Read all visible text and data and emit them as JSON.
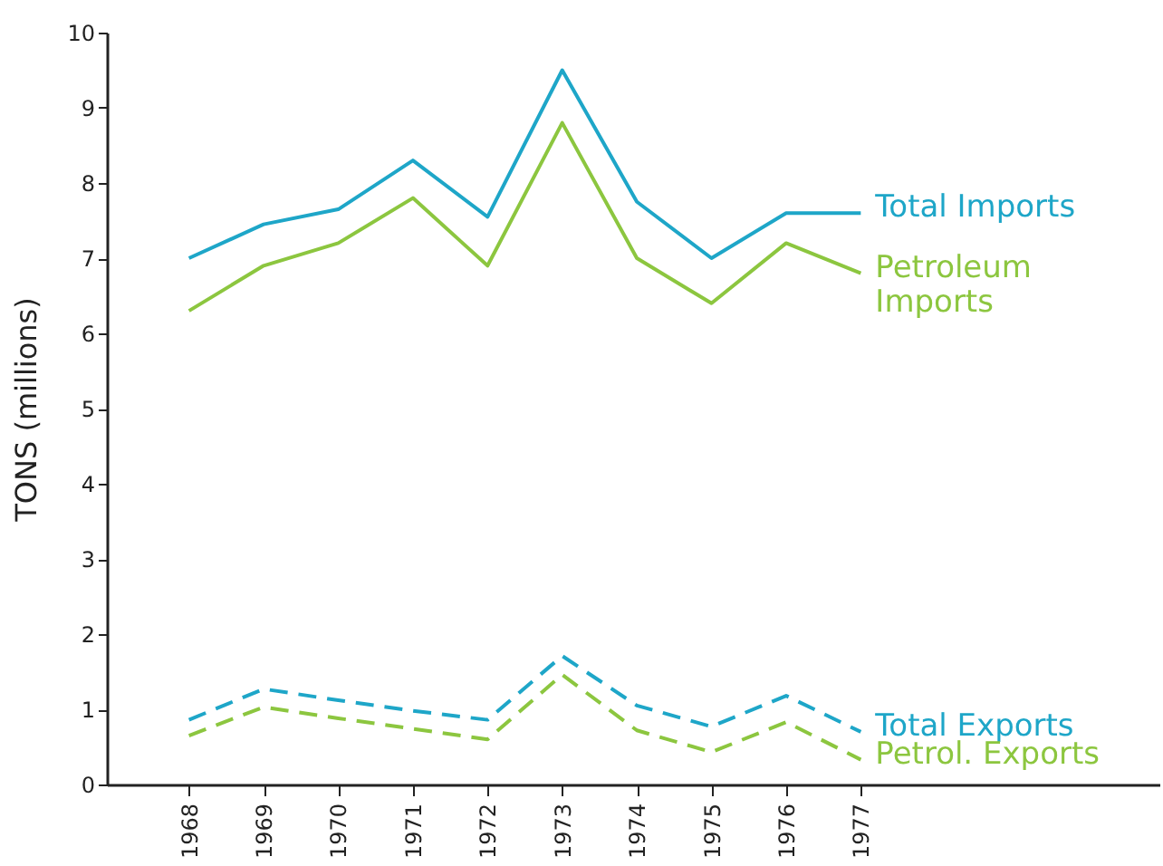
{
  "chart_data": {
    "type": "line",
    "ylabel": "TONS (millions)",
    "x": [
      1968,
      1969,
      1970,
      1971,
      1972,
      1973,
      1974,
      1975,
      1976,
      1977
    ],
    "xlim": [
      1966.9,
      1981
    ],
    "xticks": [
      1968,
      1969,
      1970,
      1971,
      1972,
      1973,
      1974,
      1975,
      1976,
      1977
    ],
    "ylim": [
      0,
      10
    ],
    "yticks": [
      0,
      1,
      2,
      3,
      4,
      5,
      6,
      7,
      8,
      9,
      10
    ],
    "grid": false,
    "legend": false,
    "marker": "none",
    "series": [
      {
        "name": "Total Imports",
        "color": "#1ea6c8",
        "line_style": "solid",
        "values": [
          7.0,
          7.45,
          7.65,
          8.3,
          7.55,
          9.5,
          7.75,
          7.0,
          7.6,
          7.6
        ]
      },
      {
        "name": "Petroleum\nImports",
        "color": "#8cc63f",
        "line_style": "solid",
        "values": [
          6.3,
          6.9,
          7.2,
          7.8,
          6.9,
          8.8,
          7.0,
          6.4,
          7.2,
          6.8
        ]
      },
      {
        "name": "Total Exports",
        "color": "#1ea6c8",
        "line_style": "dashed",
        "values": [
          0.86,
          1.27,
          1.12,
          0.98,
          0.86,
          1.71,
          1.05,
          0.77,
          1.18,
          0.7
        ]
      },
      {
        "name": "Petrol. Exports",
        "color": "#8cc63f",
        "line_style": "dashed",
        "values": [
          0.65,
          1.03,
          0.88,
          0.74,
          0.6,
          1.46,
          0.72,
          0.43,
          0.83,
          0.33
        ]
      }
    ]
  }
}
